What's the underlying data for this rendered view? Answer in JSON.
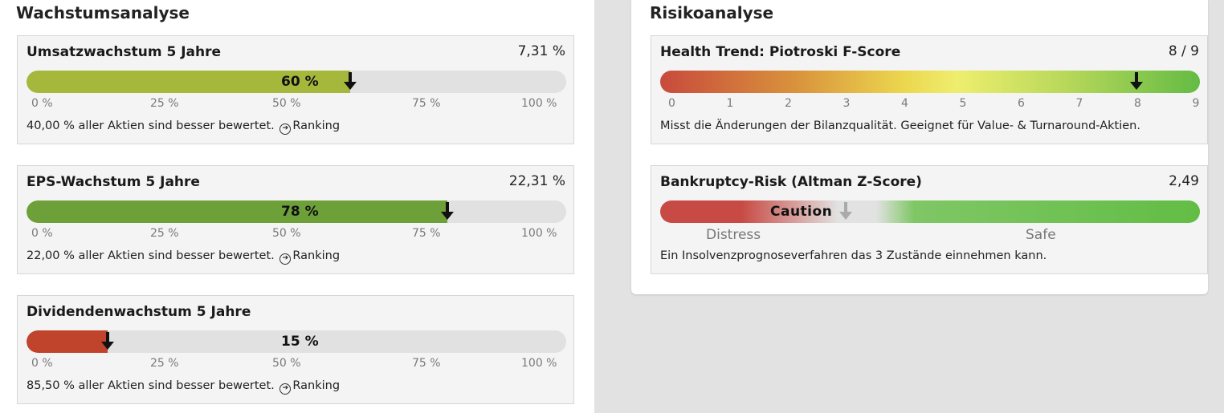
{
  "growth": {
    "title": "Wachstumsanalyse",
    "cards": [
      {
        "title": "Umsatzwachstum 5 Jahre",
        "value": "7,31 %",
        "percent": 60,
        "bar_label": "60 %",
        "color": "#a6b83c",
        "ticks": [
          "0 %",
          "25 %",
          "50 %",
          "75 %",
          "100 %"
        ],
        "note": "40,00 % aller Aktien sind besser bewertet.",
        "link": "Ranking"
      },
      {
        "title": "EPS-Wachstum 5 Jahre",
        "value": "22,31 %",
        "percent": 78,
        "bar_label": "78 %",
        "color": "#6ea03a",
        "ticks": [
          "0 %",
          "25 %",
          "50 %",
          "75 %",
          "100 %"
        ],
        "note": "22,00 % aller Aktien sind besser bewertet.",
        "link": "Ranking"
      },
      {
        "title": "Dividendenwachstum 5 Jahre",
        "value": "",
        "percent": 15,
        "bar_label": "15 %",
        "color": "#c0432b",
        "ticks": [
          "0 %",
          "25 %",
          "50 %",
          "75 %",
          "100 %"
        ],
        "note": "85,50 % aller Aktien sind besser bewertet.",
        "link": "Ranking"
      }
    ]
  },
  "risk": {
    "title": "Risikoanalyse",
    "piotroski": {
      "title": "Health Trend: Piotroski F-Score",
      "value": "8 / 9",
      "score": 8,
      "max": 9,
      "ticks": [
        "0",
        "1",
        "2",
        "3",
        "4",
        "5",
        "6",
        "7",
        "8",
        "9"
      ],
      "note": "Misst die Änderungen der Bilanzqualität. Geeignet für Value- & Turnaround-Aktien."
    },
    "altman": {
      "title": "Bankruptcy-Risk (Altman Z-Score)",
      "value": "2,49",
      "zone": "Caution",
      "zones": [
        "Distress",
        "Safe"
      ],
      "note": "Ein Insolvenzprognoseverfahren das 3 Zustände einnehmen kann."
    }
  },
  "icons": {
    "arrow": "arrow-down-icon",
    "ranking": "circle-arrow-right-icon"
  }
}
